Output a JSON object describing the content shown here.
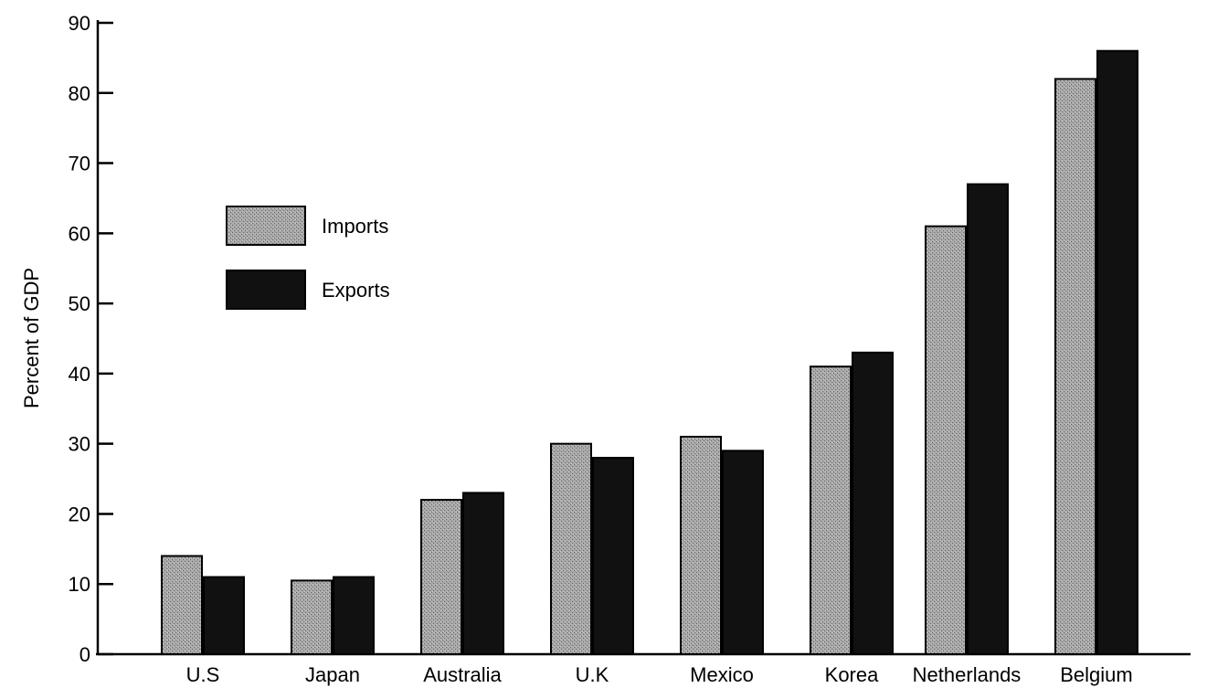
{
  "chart_data": {
    "type": "bar",
    "title": "",
    "xlabel": "",
    "ylabel": "Percent of GDP",
    "ylim": [
      0,
      90
    ],
    "yticks": [
      0,
      10,
      20,
      30,
      40,
      50,
      60,
      70,
      80,
      90
    ],
    "grid": false,
    "legend_placement": "upper-left",
    "categories": [
      "U.S",
      "Japan",
      "Australia",
      "U.K",
      "Mexico",
      "Korea",
      "Netherlands",
      "Belgium"
    ],
    "series": [
      {
        "name": "Imports",
        "color": "#9a9a9a",
        "pattern": "stipple",
        "values": [
          14,
          10.5,
          22,
          30,
          31,
          41,
          61,
          82
        ]
      },
      {
        "name": "Exports",
        "color": "#111111",
        "pattern": "solid",
        "values": [
          11,
          11,
          23,
          28,
          29,
          43,
          67,
          86
        ]
      }
    ]
  }
}
